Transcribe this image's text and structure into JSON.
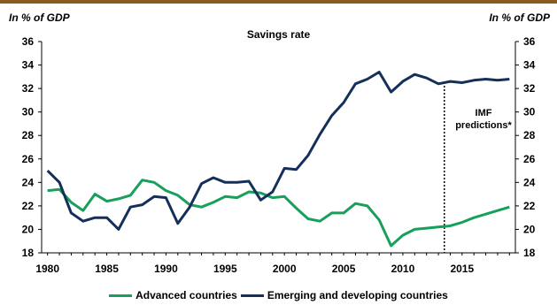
{
  "header": {
    "unit_left": "In % of GDP",
    "unit_right": "In % of GDP"
  },
  "chart_data": {
    "type": "line",
    "title": "Savings rate",
    "ylim": [
      18,
      36
    ],
    "yticks": [
      18,
      20,
      22,
      24,
      26,
      28,
      30,
      32,
      34,
      36
    ],
    "xlim": [
      1980,
      2019
    ],
    "xticks": [
      1980,
      1985,
      1990,
      1995,
      2000,
      2005,
      2010,
      2015
    ],
    "grid": false,
    "legend_position": "bottom",
    "x": [
      1980,
      1981,
      1982,
      1983,
      1984,
      1985,
      1986,
      1987,
      1988,
      1989,
      1990,
      1991,
      1992,
      1993,
      1994,
      1995,
      1996,
      1997,
      1998,
      1999,
      2000,
      2001,
      2002,
      2003,
      2004,
      2005,
      2006,
      2007,
      2008,
      2009,
      2010,
      2011,
      2012,
      2013,
      2014,
      2015,
      2016,
      2017,
      2018,
      2019
    ],
    "series": [
      {
        "name": "Advanced countries",
        "color": "#16a05c",
        "values": [
          23.3,
          23.4,
          22.3,
          21.6,
          23.0,
          22.4,
          22.6,
          22.9,
          24.2,
          24.0,
          23.3,
          22.9,
          22.1,
          21.9,
          22.3,
          22.8,
          22.7,
          23.2,
          23.1,
          22.7,
          22.8,
          21.8,
          20.9,
          20.7,
          21.4,
          21.4,
          22.2,
          22.0,
          20.8,
          18.6,
          19.5,
          20.0,
          20.1,
          20.2,
          20.3,
          20.6,
          21.0,
          21.3,
          21.6,
          21.9
        ]
      },
      {
        "name": "Emerging and developing countries",
        "color": "#14305a",
        "values": [
          25.0,
          24.0,
          21.4,
          20.7,
          21.0,
          21.0,
          20.0,
          21.9,
          22.1,
          22.8,
          22.7,
          20.5,
          21.9,
          23.9,
          24.4,
          24.0,
          24.0,
          24.1,
          22.5,
          23.2,
          25.2,
          25.1,
          26.3,
          28.1,
          29.7,
          30.8,
          32.4,
          32.8,
          33.4,
          31.7,
          32.6,
          33.2,
          32.9,
          32.4,
          32.6,
          32.5,
          32.7,
          32.8,
          32.7,
          32.8
        ]
      }
    ],
    "annotation": {
      "text_line1": "IMF",
      "text_line2": "predictions*",
      "x": 2013.5
    }
  }
}
